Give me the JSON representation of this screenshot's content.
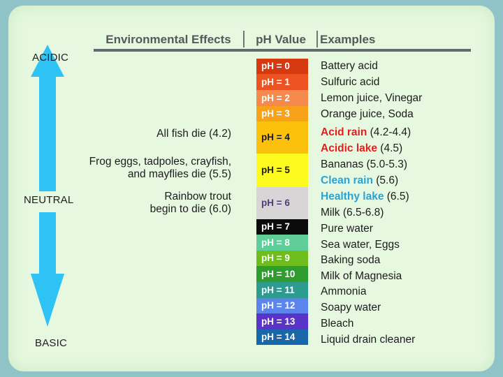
{
  "headers": {
    "effects": "Environmental Effects",
    "ph": "pH Value",
    "examples": "Examples"
  },
  "scale_labels": {
    "acidic": "ACIDIC",
    "neutral": "NEUTRAL",
    "basic": "BASIC"
  },
  "colors": {
    "background": "#8fc3c8",
    "panel": "#e6f8e0",
    "arrow": "#2ec3f4",
    "acid_red": "#e41d1d",
    "clean_blue": "#27a3d6"
  },
  "ph_scale": [
    {
      "label": "pH = 0",
      "color": "#d6380f",
      "text_color": "#ffffff"
    },
    {
      "label": "pH = 1",
      "color": "#ec5320",
      "text_color": "#ffffff"
    },
    {
      "label": "pH = 2",
      "color": "#f6894e",
      "text_color": "#ffffff"
    },
    {
      "label": "pH = 3",
      "color": "#f8a21a",
      "text_color": "#ffffff"
    },
    {
      "label": "pH = 4",
      "color": "#fcc10c",
      "text_color": "#1c1c1c"
    },
    {
      "label": "pH = 5",
      "color": "#fdfb1e",
      "text_color": "#1c1c1c"
    },
    {
      "label": "pH = 6",
      "color": "#d7d5d6",
      "text_color": "#4b3f78"
    },
    {
      "label": "pH = 7",
      "color": "#0b0b0b",
      "text_color": "#ffffff"
    },
    {
      "label": "pH = 8",
      "color": "#5fce99",
      "text_color": "#ffffff"
    },
    {
      "label": "pH = 9",
      "color": "#6ebd1c",
      "text_color": "#ffffff"
    },
    {
      "label": "pH = 10",
      "color": "#2f9c30",
      "text_color": "#ffffff"
    },
    {
      "label": "pH = 11",
      "color": "#2d9b8f",
      "text_color": "#ffffff"
    },
    {
      "label": "pH = 12",
      "color": "#5b84ec",
      "text_color": "#ffffff"
    },
    {
      "label": "pH = 13",
      "color": "#5a33c8",
      "text_color": "#ffffff"
    },
    {
      "label": "pH = 14",
      "color": "#1767a9",
      "text_color": "#ffffff"
    }
  ],
  "examples": [
    {
      "parts": [
        {
          "text": "Battery acid",
          "style": "normal"
        }
      ]
    },
    {
      "parts": [
        {
          "text": "Sulfuric acid",
          "style": "normal"
        }
      ]
    },
    {
      "parts": [
        {
          "text": "Lemon juice, Vinegar",
          "style": "normal"
        }
      ]
    },
    {
      "parts": [
        {
          "text": "Orange juice, Soda",
          "style": "normal"
        }
      ]
    },
    {
      "parts": [
        {
          "text": "Acid rain",
          "style": "red"
        },
        {
          "text": " (4.2-4.4)",
          "style": "normal"
        }
      ]
    },
    {
      "parts": [
        {
          "text": "Acidic lake",
          "style": "red"
        },
        {
          "text": " (4.5)",
          "style": "normal"
        }
      ]
    },
    {
      "parts": [
        {
          "text": "Bananas (5.0-5.3)",
          "style": "normal"
        }
      ]
    },
    {
      "parts": [
        {
          "text": "Clean rain",
          "style": "blue"
        },
        {
          "text": " (5.6)",
          "style": "normal"
        }
      ]
    },
    {
      "parts": [
        {
          "text": "Healthy lake",
          "style": "blue"
        },
        {
          "text": " (6.5)",
          "style": "normal"
        }
      ]
    },
    {
      "parts": [
        {
          "text": "Milk (6.5-6.8)",
          "style": "normal"
        }
      ]
    },
    {
      "parts": [
        {
          "text": "Pure water",
          "style": "normal"
        }
      ]
    },
    {
      "parts": [
        {
          "text": "Sea water, Eggs",
          "style": "normal"
        }
      ]
    },
    {
      "parts": [
        {
          "text": "Baking soda",
          "style": "normal"
        }
      ]
    },
    {
      "parts": [
        {
          "text": "Milk of Magnesia",
          "style": "normal"
        }
      ]
    },
    {
      "parts": [
        {
          "text": "Ammonia",
          "style": "normal"
        }
      ]
    },
    {
      "parts": [
        {
          "text": "Soapy water",
          "style": "normal"
        }
      ]
    },
    {
      "parts": [
        {
          "text": "Bleach",
          "style": "normal"
        }
      ]
    },
    {
      "parts": [
        {
          "text": "Liquid drain cleaner",
          "style": "normal"
        }
      ]
    }
  ],
  "effects": [
    {
      "lines": [
        "All fish die (4.2)"
      ]
    },
    {
      "lines": [
        "Frog eggs, tadpoles, crayfish,",
        "and mayflies die (5.5)"
      ]
    },
    {
      "lines": [
        "Rainbow trout",
        "begin to die (6.0)"
      ]
    }
  ]
}
